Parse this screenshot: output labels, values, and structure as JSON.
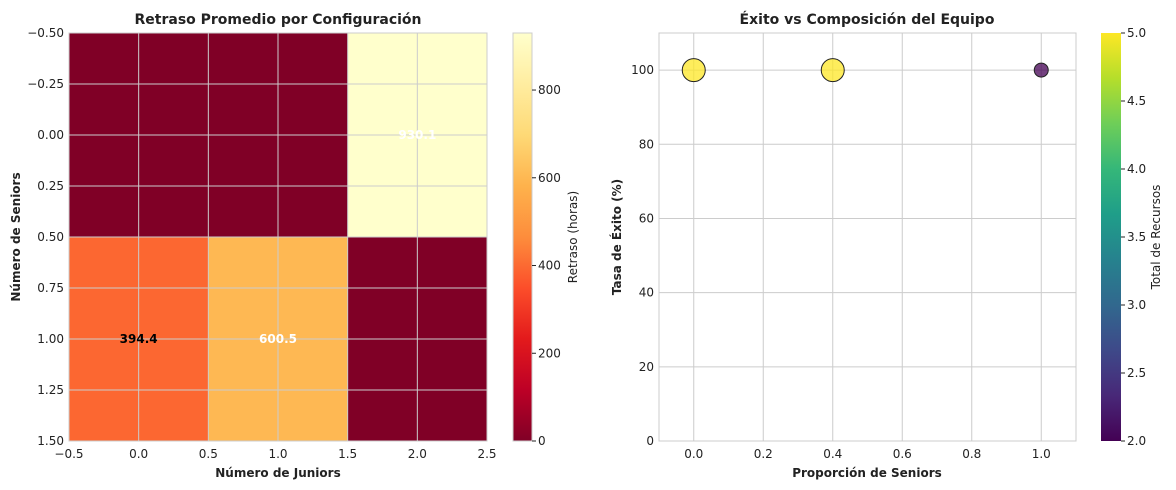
{
  "chart_data": [
    {
      "type": "heatmap",
      "title": "Retraso Promedio por Configuración",
      "xlabel": "Número de Juniors",
      "ylabel": "Número de Seniors",
      "xlim": [
        -0.5,
        2.5
      ],
      "ylim": [
        1.5,
        -0.5
      ],
      "xticks": [
        "−0.5",
        "0.0",
        "0.5",
        "1.0",
        "1.5",
        "2.0",
        "2.5"
      ],
      "xtick_values": [
        -0.5,
        0.0,
        0.5,
        1.0,
        1.5,
        2.0,
        2.5
      ],
      "yticks": [
        "−0.50",
        "−0.25",
        "0.00",
        "0.25",
        "0.50",
        "0.75",
        "1.00",
        "1.25",
        "1.50"
      ],
      "ytick_values": [
        -0.5,
        -0.25,
        0.0,
        0.25,
        0.5,
        0.75,
        1.0,
        1.25,
        1.5
      ],
      "cells": [
        {
          "row": 0,
          "col": 0,
          "value": 0,
          "label": ""
        },
        {
          "row": 0,
          "col": 1,
          "value": 0,
          "label": ""
        },
        {
          "row": 0,
          "col": 2,
          "value": 930,
          "label": "930.1"
        },
        {
          "row": 1,
          "col": 0,
          "value": 394.4,
          "label": "394.4"
        },
        {
          "row": 1,
          "col": 1,
          "value": 600.5,
          "label": "600.5"
        },
        {
          "row": 1,
          "col": 2,
          "value": 0,
          "label": ""
        }
      ],
      "colorbar": {
        "label": "Retraso (horas)",
        "min": 0,
        "max": 930,
        "ticks": [
          "0",
          "200",
          "400",
          "600",
          "800"
        ],
        "tick_values": [
          0,
          200,
          400,
          600,
          800
        ],
        "colormap": "YlOrRd_r",
        "stops": [
          "#800026",
          "#bd0026",
          "#e31a1c",
          "#fc4e2a",
          "#fd8d3c",
          "#feb24c",
          "#fed976",
          "#ffeda0",
          "#ffffcc"
        ]
      }
    },
    {
      "type": "scatter",
      "title": "Éxito vs Composición del Equipo",
      "xlabel": "Proporción de Seniors",
      "ylabel": "Tasa de Éxito (%)",
      "xlim": [
        -0.1,
        1.1
      ],
      "ylim": [
        0,
        110
      ],
      "xticks": [
        "0.0",
        "0.2",
        "0.4",
        "0.6",
        "0.8",
        "1.0"
      ],
      "xtick_values": [
        0.0,
        0.2,
        0.4,
        0.6,
        0.8,
        1.0
      ],
      "yticks": [
        "0",
        "20",
        "40",
        "60",
        "80",
        "100"
      ],
      "ytick_values": [
        0,
        20,
        40,
        60,
        80,
        100
      ],
      "points": [
        {
          "x": 0.0,
          "y": 100,
          "total": 5
        },
        {
          "x": 0.4,
          "y": 100,
          "total": 5
        },
        {
          "x": 1.0,
          "y": 100,
          "total": 2
        }
      ],
      "colorbar": {
        "label": "Total de Recursos",
        "min": 2.0,
        "max": 5.0,
        "ticks": [
          "2.0",
          "2.5",
          "3.0",
          "3.5",
          "4.0",
          "4.5",
          "5.0"
        ],
        "tick_values": [
          2.0,
          2.5,
          3.0,
          3.5,
          4.0,
          4.5,
          5.0
        ],
        "colormap": "viridis",
        "stops": [
          "#440154",
          "#482878",
          "#3e4989",
          "#31688e",
          "#26828e",
          "#1f9e89",
          "#35b779",
          "#6ece58",
          "#b5de2b",
          "#fde725"
        ]
      }
    }
  ]
}
